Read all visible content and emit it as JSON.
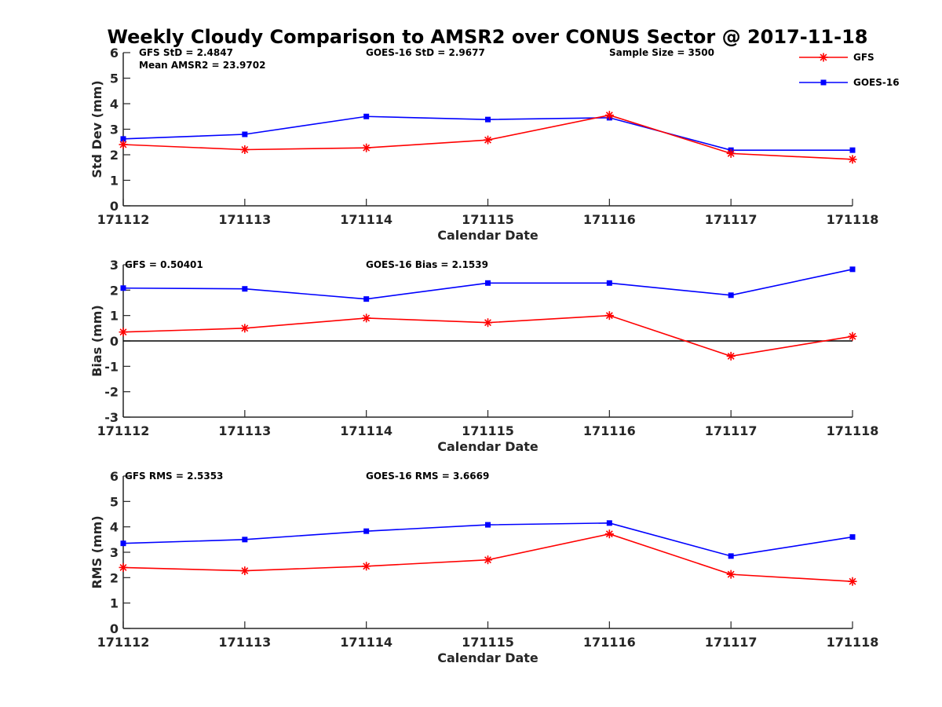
{
  "title": "Weekly Cloudy Comparison to AMSR2 over CONUS Sector @ 2017-11-18",
  "legend": {
    "placement": "top-right",
    "entries": [
      {
        "name": "GFS",
        "color": "#ff0000",
        "marker": "asterisk"
      },
      {
        "name": "GOES-16",
        "color": "#0000ff",
        "marker": "square"
      }
    ]
  },
  "chart_data": [
    {
      "type": "line",
      "xlabel": "Calendar Date",
      "ylabel": "Std Dev (mm)",
      "x": [
        "171112",
        "171113",
        "171114",
        "171115",
        "171116",
        "171117",
        "171118"
      ],
      "ylim": [
        0,
        6
      ],
      "yticks": [
        "0",
        "1",
        "2",
        "3",
        "4",
        "5",
        "6"
      ],
      "zero_line": false,
      "annotations": [
        {
          "text": "GFS StD = 2.4847",
          "pos": "top-left"
        },
        {
          "text": "Mean AMSR2 = 23.9702",
          "pos": "top-left-2"
        },
        {
          "text": "GOES-16 StD = 2.9677",
          "pos": "top-center"
        },
        {
          "text": "Sample Size = 3500",
          "pos": "top-right"
        }
      ],
      "series": [
        {
          "name": "GFS",
          "color": "#ff0000",
          "marker": "asterisk",
          "values": [
            2.4,
            2.2,
            2.27,
            2.58,
            3.55,
            2.05,
            1.82
          ]
        },
        {
          "name": "GOES-16",
          "color": "#0000ff",
          "marker": "square",
          "values": [
            2.62,
            2.8,
            3.5,
            3.38,
            3.45,
            2.18,
            2.18
          ]
        }
      ]
    },
    {
      "type": "line",
      "xlabel": "Calendar Date",
      "ylabel": "Bias (mm)",
      "x": [
        "171112",
        "171113",
        "171114",
        "171115",
        "171116",
        "171117",
        "171118"
      ],
      "ylim": [
        -3,
        3
      ],
      "yticks": [
        "-3",
        "-2",
        "-1",
        "0",
        "1",
        "2",
        "3"
      ],
      "zero_line": true,
      "annotations": [
        {
          "text": "GFS = 0.50401",
          "pos": "top-left"
        },
        {
          "text": "GOES-16 Bias  = 2.1539",
          "pos": "top-center"
        }
      ],
      "series": [
        {
          "name": "GFS",
          "color": "#ff0000",
          "marker": "asterisk",
          "values": [
            0.35,
            0.5,
            0.9,
            0.72,
            1.0,
            -0.6,
            0.18
          ]
        },
        {
          "name": "GOES-16",
          "color": "#0000ff",
          "marker": "square",
          "values": [
            2.08,
            2.05,
            1.65,
            2.28,
            2.28,
            1.8,
            2.82
          ]
        }
      ]
    },
    {
      "type": "line",
      "xlabel": "Calendar Date",
      "ylabel": "RMS (mm)",
      "x": [
        "171112",
        "171113",
        "171114",
        "171115",
        "171116",
        "171117",
        "171118"
      ],
      "ylim": [
        0,
        6
      ],
      "yticks": [
        "0",
        "1",
        "2",
        "3",
        "4",
        "5",
        "6"
      ],
      "zero_line": false,
      "annotations": [
        {
          "text": "GFS RMS = 2.5353",
          "pos": "top-left"
        },
        {
          "text": "GOES-16 RMS = 3.6669",
          "pos": "top-center"
        }
      ],
      "series": [
        {
          "name": "GFS",
          "color": "#ff0000",
          "marker": "asterisk",
          "values": [
            2.4,
            2.27,
            2.45,
            2.7,
            3.72,
            2.13,
            1.85
          ]
        },
        {
          "name": "GOES-16",
          "color": "#0000ff",
          "marker": "square",
          "values": [
            3.35,
            3.5,
            3.83,
            4.08,
            4.15,
            2.85,
            3.6
          ]
        }
      ]
    }
  ]
}
